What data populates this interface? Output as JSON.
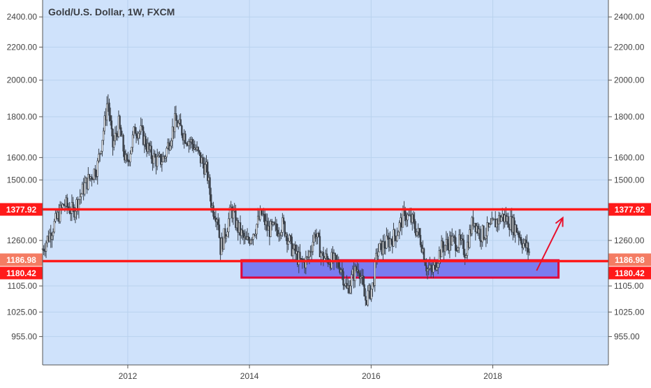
{
  "chart_data": {
    "type": "candlestick",
    "title": "Gold/U.S. Dollar, 1W, FXCM",
    "x_ticks": [
      "2012",
      "2014",
      "2016",
      "2018"
    ],
    "x_range": [
      2010.6,
      2019.9
    ],
    "y_scale": "log",
    "y_range": [
      880,
      2520
    ],
    "y_ticks": [
      "2400.00",
      "2200.00",
      "2000.00",
      "1800.00",
      "1600.00",
      "1500.00",
      "1260.00",
      "1105.00",
      "1025.00",
      "955.00"
    ],
    "grid": true,
    "axis_labels_left": true,
    "axis_labels_right": true,
    "colors": {
      "background": "#cfe2fb",
      "grid": "#b9d2ee",
      "candle": "#3a4049",
      "level_line": "#ff1a1a",
      "zone_fill": "#7a7cf0",
      "zone_border": "#e0003a",
      "arrow": "#e8102c",
      "label_red": "#ff1a1a",
      "label_orange": "#f47c63"
    },
    "price_path": [
      [
        2010.6,
        1230
      ],
      [
        2010.95,
        1400
      ],
      [
        2011.1,
        1370
      ],
      [
        2011.3,
        1480
      ],
      [
        2011.5,
        1560
      ],
      [
        2011.62,
        1770
      ],
      [
        2011.67,
        1900
      ],
      [
        2011.75,
        1650
      ],
      [
        2011.85,
        1760
      ],
      [
        2011.98,
        1560
      ],
      [
        2012.12,
        1740
      ],
      [
        2012.22,
        1720
      ],
      [
        2012.38,
        1610
      ],
      [
        2012.5,
        1580
      ],
      [
        2012.6,
        1600
      ],
      [
        2012.7,
        1700
      ],
      [
        2012.78,
        1780
      ],
      [
        2012.95,
        1700
      ],
      [
        2013.08,
        1660
      ],
      [
        2013.2,
        1590
      ],
      [
        2013.3,
        1540
      ],
      [
        2013.38,
        1390
      ],
      [
        2013.48,
        1350
      ],
      [
        2013.52,
        1230
      ],
      [
        2013.62,
        1300
      ],
      [
        2013.7,
        1380
      ],
      [
        2013.8,
        1310
      ],
      [
        2013.95,
        1250
      ],
      [
        2014.08,
        1300
      ],
      [
        2014.2,
        1360
      ],
      [
        2014.3,
        1300
      ],
      [
        2014.45,
        1300
      ],
      [
        2014.55,
        1320
      ],
      [
        2014.7,
        1230
      ],
      [
        2014.85,
        1180
      ],
      [
        2014.95,
        1190
      ],
      [
        2015.08,
        1290
      ],
      [
        2015.2,
        1200
      ],
      [
        2015.35,
        1190
      ],
      [
        2015.5,
        1170
      ],
      [
        2015.6,
        1090
      ],
      [
        2015.7,
        1140
      ],
      [
        2015.8,
        1170
      ],
      [
        2015.9,
        1060
      ],
      [
        2016.02,
        1100
      ],
      [
        2016.1,
        1220
      ],
      [
        2016.25,
        1250
      ],
      [
        2016.4,
        1280
      ],
      [
        2016.55,
        1360
      ],
      [
        2016.68,
        1330
      ],
      [
        2016.82,
        1260
      ],
      [
        2016.92,
        1160
      ],
      [
        2017.0,
        1150
      ],
      [
        2017.15,
        1230
      ],
      [
        2017.3,
        1260
      ],
      [
        2017.45,
        1250
      ],
      [
        2017.55,
        1220
      ],
      [
        2017.68,
        1340
      ],
      [
        2017.8,
        1280
      ],
      [
        2017.95,
        1300
      ],
      [
        2018.05,
        1330
      ],
      [
        2018.15,
        1350
      ],
      [
        2018.28,
        1330
      ],
      [
        2018.4,
        1300
      ],
      [
        2018.5,
        1250
      ],
      [
        2018.6,
        1220
      ]
    ],
    "high_points": [
      [
        2011.68,
        1920
      ]
    ],
    "low_points": [
      [
        2015.92,
        1045
      ]
    ],
    "level_lines": [
      {
        "value": 1377.92,
        "label": "1377.92",
        "label_color": "red"
      },
      {
        "value": 1186.98,
        "label": "1186.98",
        "label_color": "orange"
      },
      {
        "value": 1180.42,
        "label": "1180.42",
        "label_color": "red"
      }
    ],
    "zone": {
      "x_start": 2013.87,
      "x_end": 2019.08,
      "y_top": 1190,
      "y_bottom": 1132
    },
    "arrow": {
      "from": [
        2018.72,
        1155
      ],
      "to": [
        2019.15,
        1345
      ]
    },
    "seed": 7
  }
}
